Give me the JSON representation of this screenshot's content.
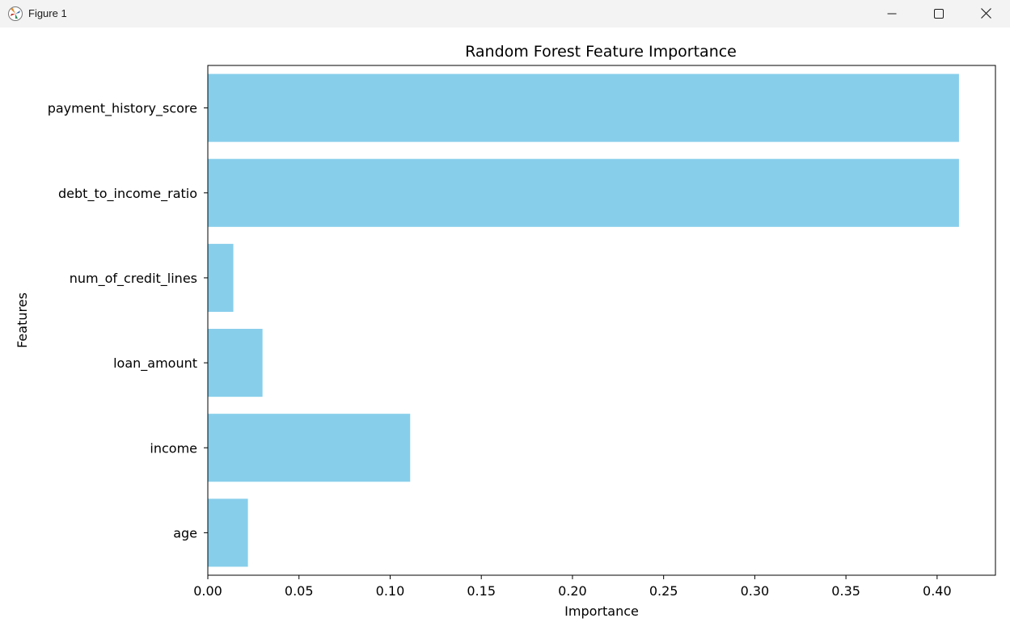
{
  "window": {
    "title": "Figure 1",
    "icons": {
      "app": "matplotlib-icon",
      "minimize": "minimize-icon",
      "maximize": "maximize-icon",
      "close": "close-icon"
    }
  },
  "chart_data": {
    "type": "bar",
    "orientation": "horizontal",
    "title": "Random Forest Feature Importance",
    "xlabel": "Importance",
    "ylabel": "Features",
    "categories": [
      "age",
      "income",
      "loan_amount",
      "num_of_credit_lines",
      "debt_to_income_ratio",
      "payment_history_score"
    ],
    "values": [
      0.022,
      0.111,
      0.03,
      0.014,
      0.412,
      0.412
    ],
    "xlim": [
      0,
      0.432
    ],
    "xticks": [
      "0.00",
      "0.05",
      "0.10",
      "0.15",
      "0.20",
      "0.25",
      "0.30",
      "0.35",
      "0.40"
    ],
    "bar_color": "#87ceeb",
    "grid": false
  }
}
